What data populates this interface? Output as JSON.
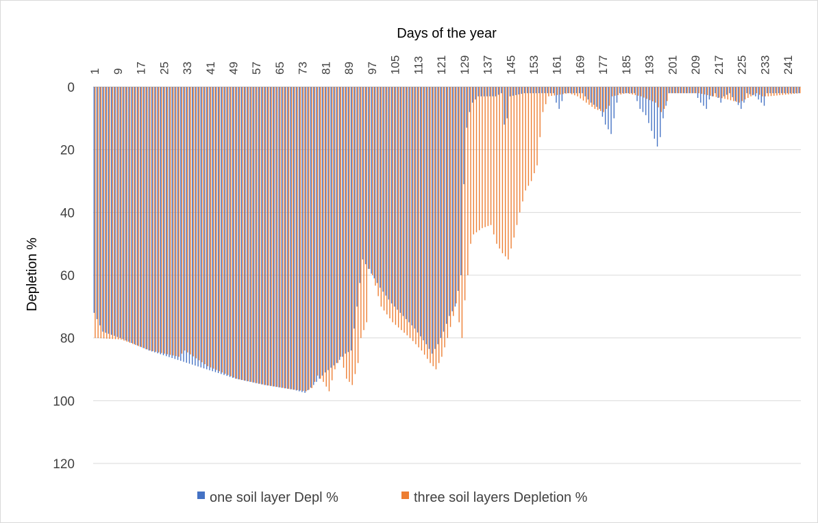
{
  "chart_data": {
    "type": "bar",
    "orientation": "vertical, reversed y-axis (values grow downward)",
    "title": "",
    "xlabel": "Days of the year",
    "ylabel": "Depletion %",
    "ylim": [
      0,
      120
    ],
    "y_ticks": [
      "0",
      "20",
      "40",
      "60",
      "80",
      "100",
      "120"
    ],
    "x_tick_labels": [
      "1",
      "9",
      "17",
      "25",
      "33",
      "41",
      "49",
      "57",
      "65",
      "73",
      "81",
      "89",
      "97",
      "105",
      "113",
      "121",
      "129",
      "137",
      "145",
      "153",
      "161",
      "169",
      "177",
      "185",
      "193",
      "201",
      "209",
      "217",
      "225",
      "233",
      "241"
    ],
    "x": {
      "start": 1,
      "end": 245
    },
    "grid": true,
    "legend_position": "bottom",
    "colors": {
      "series1": "#4472c4",
      "series2": "#ed7d31",
      "grid": "#d9d9d9",
      "axis": "#bfbfbf"
    },
    "series": [
      {
        "name": "one soil layer Depl %",
        "keypoints": [
          [
            1,
            72
          ],
          [
            4,
            78
          ],
          [
            10,
            80
          ],
          [
            20,
            84
          ],
          [
            30,
            87
          ],
          [
            40,
            90
          ],
          [
            50,
            93
          ],
          [
            60,
            95
          ],
          [
            70,
            96.5
          ],
          [
            74,
            97.5
          ],
          [
            77,
            95
          ],
          [
            81,
            91
          ],
          [
            85,
            88
          ],
          [
            88,
            85
          ],
          [
            90,
            84
          ],
          [
            92,
            70
          ],
          [
            94,
            55
          ],
          [
            96,
            58
          ],
          [
            100,
            64
          ],
          [
            104,
            69
          ],
          [
            108,
            73
          ],
          [
            112,
            77
          ],
          [
            116,
            82
          ],
          [
            118,
            85
          ],
          [
            120,
            82
          ],
          [
            122,
            78
          ],
          [
            124,
            73
          ],
          [
            126,
            70
          ],
          [
            128,
            60
          ],
          [
            129,
            31
          ],
          [
            130,
            13
          ],
          [
            131,
            8
          ],
          [
            132,
            5
          ],
          [
            134,
            3
          ],
          [
            138,
            3
          ],
          [
            140,
            3
          ],
          [
            142,
            2
          ],
          [
            143,
            12
          ],
          [
            144,
            10
          ],
          [
            145,
            3
          ],
          [
            150,
            2
          ],
          [
            155,
            2
          ],
          [
            158,
            2
          ],
          [
            160,
            2
          ],
          [
            161,
            5
          ],
          [
            162,
            7
          ],
          [
            164,
            2
          ],
          [
            170,
            2
          ],
          [
            173,
            5
          ],
          [
            176,
            7
          ],
          [
            178,
            12
          ],
          [
            180,
            15
          ],
          [
            181,
            10
          ],
          [
            182,
            5
          ],
          [
            183,
            2
          ],
          [
            186,
            2
          ],
          [
            188,
            2
          ],
          [
            190,
            7
          ],
          [
            192,
            9
          ],
          [
            194,
            14
          ],
          [
            196,
            19
          ],
          [
            197,
            16
          ],
          [
            198,
            10
          ],
          [
            200,
            2
          ],
          [
            205,
            2
          ],
          [
            209,
            2
          ],
          [
            211,
            5
          ],
          [
            213,
            7
          ],
          [
            214,
            4
          ],
          [
            216,
            2
          ],
          [
            218,
            5
          ],
          [
            219,
            3
          ],
          [
            221,
            2
          ],
          [
            225,
            7
          ],
          [
            226,
            5
          ],
          [
            227,
            2
          ],
          [
            230,
            3
          ],
          [
            233,
            6
          ],
          [
            234,
            2
          ],
          [
            245,
            2
          ]
        ]
      },
      {
        "name": "three soil layers Depletion %",
        "keypoints": [
          [
            1,
            80
          ],
          [
            10,
            80.5
          ],
          [
            20,
            84
          ],
          [
            30,
            86
          ],
          [
            32,
            84
          ],
          [
            40,
            89
          ],
          [
            50,
            93
          ],
          [
            60,
            95
          ],
          [
            70,
            96.5
          ],
          [
            74,
            97
          ],
          [
            76,
            96
          ],
          [
            78,
            92
          ],
          [
            80,
            94
          ],
          [
            82,
            97
          ],
          [
            84,
            90
          ],
          [
            86,
            86
          ],
          [
            88,
            93
          ],
          [
            90,
            95
          ],
          [
            92,
            88
          ],
          [
            93,
            80
          ],
          [
            95,
            75
          ],
          [
            96,
            58
          ],
          [
            97,
            60
          ],
          [
            100,
            70
          ],
          [
            104,
            75
          ],
          [
            110,
            80
          ],
          [
            114,
            84
          ],
          [
            117,
            88
          ],
          [
            119,
            90
          ],
          [
            121,
            86
          ],
          [
            123,
            80
          ],
          [
            125,
            73
          ],
          [
            126,
            69
          ],
          [
            127,
            75
          ],
          [
            128,
            80
          ],
          [
            129,
            68
          ],
          [
            130,
            60
          ],
          [
            131,
            50
          ],
          [
            132,
            47
          ],
          [
            135,
            45
          ],
          [
            138,
            44
          ],
          [
            140,
            50
          ],
          [
            142,
            53
          ],
          [
            144,
            55
          ],
          [
            146,
            48
          ],
          [
            148,
            40
          ],
          [
            150,
            33
          ],
          [
            152,
            30
          ],
          [
            154,
            25
          ],
          [
            155,
            16
          ],
          [
            156,
            8
          ],
          [
            158,
            3
          ],
          [
            165,
            2
          ],
          [
            168,
            3
          ],
          [
            171,
            5
          ],
          [
            174,
            7
          ],
          [
            177,
            8
          ],
          [
            179,
            6
          ],
          [
            180,
            3
          ],
          [
            185,
            2
          ],
          [
            190,
            3
          ],
          [
            195,
            5
          ],
          [
            197,
            8
          ],
          [
            198,
            7
          ],
          [
            200,
            2
          ],
          [
            210,
            2
          ],
          [
            215,
            3
          ],
          [
            220,
            4
          ],
          [
            224,
            5
          ],
          [
            226,
            4
          ],
          [
            228,
            3
          ],
          [
            230,
            2
          ],
          [
            232,
            3
          ],
          [
            234,
            3
          ],
          [
            245,
            2
          ]
        ]
      }
    ]
  }
}
